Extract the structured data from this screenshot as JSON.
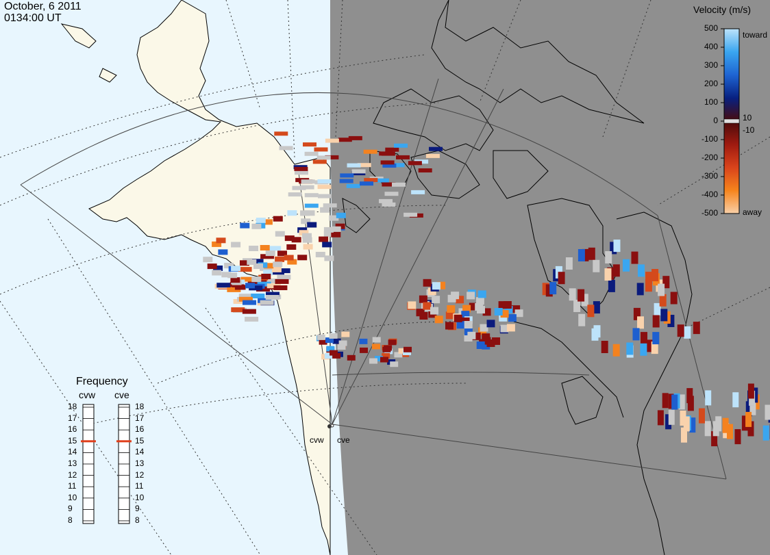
{
  "header": {
    "date": "October, 6 2011",
    "time": "0134:00 UT"
  },
  "colors": {
    "ocean": "#e8f6fe",
    "land_day": "#fbf8e8",
    "night": "#8f8f8f",
    "ground_scatter": "#c8c8c8"
  },
  "legend": {
    "title": "Velocity (m/s)",
    "ticks": [
      "500",
      "400",
      "300",
      "200",
      "100",
      "0",
      "-100",
      "-200",
      "-300",
      "-400",
      "-500"
    ],
    "mini_ticks": [
      "10",
      "-10"
    ],
    "toward_label": "toward",
    "away_label": "away",
    "scale_colors_top_to_bottom": [
      "#bde3fb",
      "#3aa6f0",
      "#1e64d2",
      "#082080",
      "#4a0b0b",
      "#9e1a10",
      "#d9431b",
      "#f6841c",
      "#f9d0a8"
    ]
  },
  "frequency_panel": {
    "title": "Frequency",
    "radars": [
      {
        "name": "cvw",
        "freq_mhz": 15
      },
      {
        "name": "cve",
        "freq_mhz": 15
      }
    ],
    "ticks": [
      "18",
      "17",
      "16",
      "15",
      "14",
      "13",
      "12",
      "11",
      "10",
      "9",
      "8"
    ]
  },
  "radar_sites": [
    {
      "name": "cvw"
    },
    {
      "name": "cve"
    }
  ]
}
